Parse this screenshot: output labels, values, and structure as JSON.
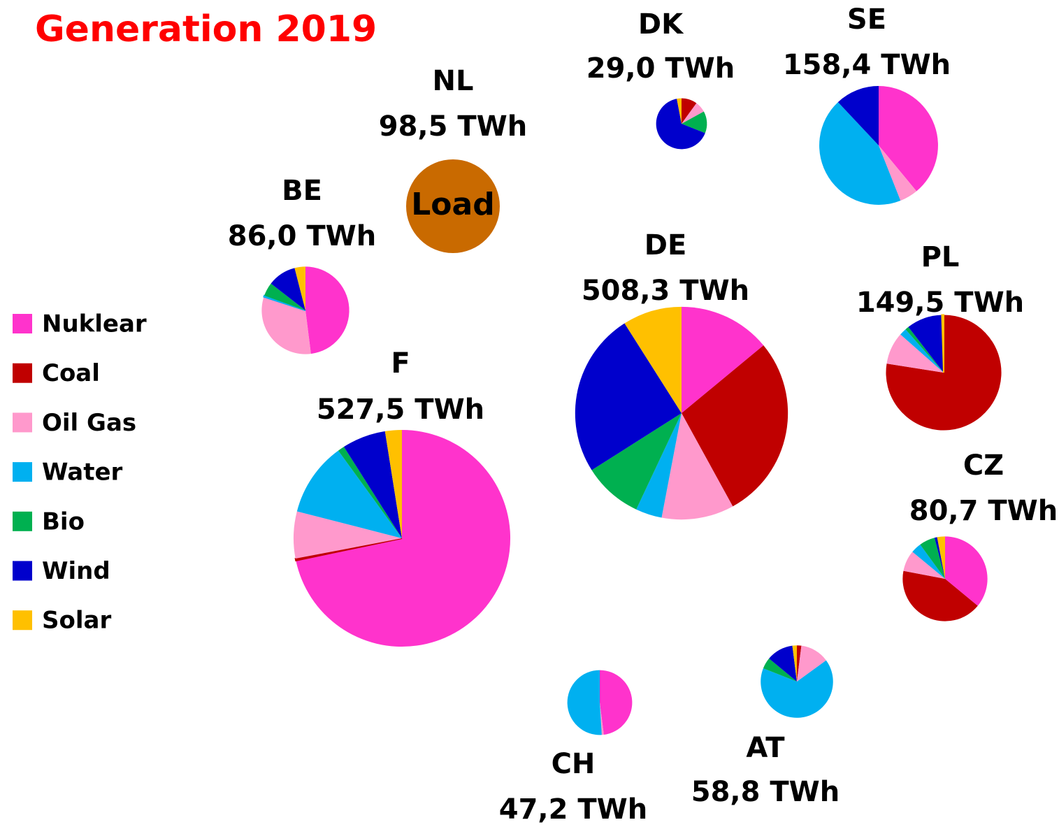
{
  "chart_data": {
    "type": "pie",
    "title": "Generation 2019",
    "categories": [
      "Nuklear",
      "Coal",
      "Oil Gas",
      "Water",
      "Bio",
      "Wind",
      "Solar"
    ],
    "colors": [
      "#ff33cc",
      "#c00000",
      "#ff99cc",
      "#00b0f0",
      "#00b050",
      "#0000cc",
      "#ffc000"
    ],
    "pies": [
      {
        "name": "DK",
        "total": 29.0,
        "total_label": "29,0 TWh",
        "values": [
          0,
          10,
          7,
          0,
          14,
          66,
          3
        ]
      },
      {
        "name": "SE",
        "total": 158.4,
        "total_label": "158,4 TWh",
        "values": [
          39,
          0,
          5,
          44,
          0,
          12,
          0
        ]
      },
      {
        "name": "NL",
        "total": 98.5,
        "total_label": "98,5 TWh",
        "center_label": "Load",
        "colors": [
          "#c96a00"
        ],
        "values": [
          100
        ]
      },
      {
        "name": "BE",
        "total": 86.0,
        "total_label": "86,0 TWh",
        "values": [
          48,
          0,
          32,
          0.5,
          5,
          10.5,
          4
        ]
      },
      {
        "name": "DE",
        "total": 508.3,
        "total_label": "508,3 TWh",
        "values": [
          14,
          28,
          11,
          4,
          9,
          25,
          9
        ]
      },
      {
        "name": "PL",
        "total": 149.5,
        "total_label": "149,5 TWh",
        "values": [
          0,
          77.5,
          9,
          2,
          1,
          10,
          0.5
        ]
      },
      {
        "name": "F",
        "total": 527.5,
        "total_label": "527,5 TWh",
        "values": [
          71.7,
          0.3,
          7,
          11,
          1,
          6.5,
          2.5
        ]
      },
      {
        "name": "CZ",
        "total": 80.7,
        "total_label": "80,7 TWh",
        "values": [
          36,
          42,
          8,
          4,
          6,
          1,
          3
        ]
      },
      {
        "name": "AT",
        "total": 58.8,
        "total_label": "58,8 TWh",
        "values": [
          0,
          2,
          13,
          66,
          5,
          12,
          2
        ]
      },
      {
        "name": "CH",
        "total": 47.2,
        "total_label": "47,2 TWh",
        "values": [
          48,
          0,
          1,
          51,
          0,
          0,
          0
        ]
      }
    ]
  }
}
